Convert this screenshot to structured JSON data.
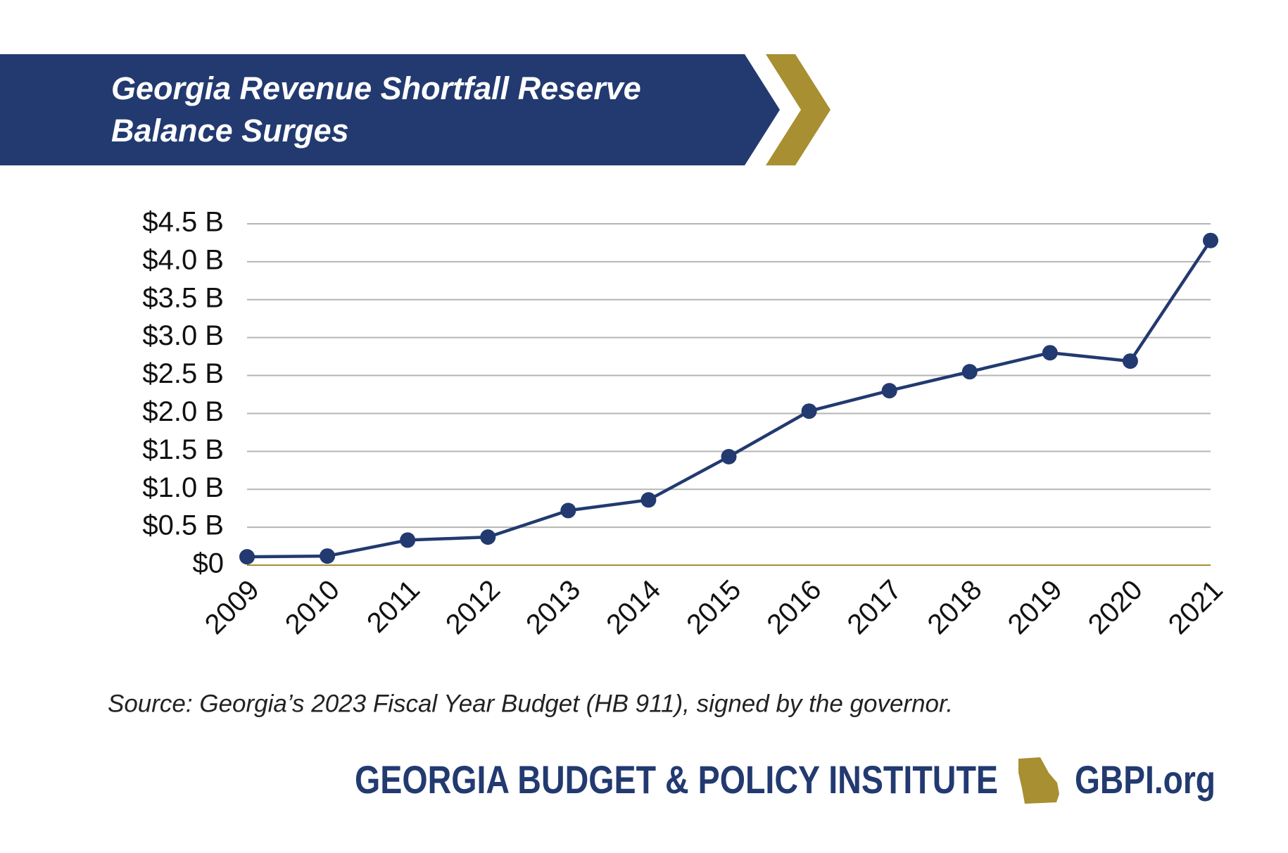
{
  "chart_data": {
    "type": "line",
    "title": "Georgia Revenue Shortfall Reserve Balance Surges",
    "categories": [
      "2009",
      "2010",
      "2011",
      "2012",
      "2013",
      "2014",
      "2015",
      "2016",
      "2017",
      "2018",
      "2019",
      "2020",
      "2021"
    ],
    "series": [
      {
        "name": "Revenue Shortfall Reserve balance",
        "color": "#223a70",
        "values": [
          0.11,
          0.12,
          0.33,
          0.37,
          0.72,
          0.86,
          1.43,
          2.03,
          2.3,
          2.55,
          2.8,
          2.69,
          4.28
        ]
      }
    ],
    "ylim": [
      0,
      4.5
    ],
    "yticks": [
      {
        "value": 0,
        "label": "$0"
      },
      {
        "value": 0.5,
        "label": "$0.5 B"
      },
      {
        "value": 1,
        "label": "$1.0 B"
      },
      {
        "value": 1.5,
        "label": "$1.5 B"
      },
      {
        "value": 2,
        "label": "$2.0 B"
      },
      {
        "value": 2.5,
        "label": "$2.5 B"
      },
      {
        "value": 3,
        "label": "$3.0 B"
      },
      {
        "value": 3.5,
        "label": "$3.5 B"
      },
      {
        "value": 4,
        "label": "$4.0 B"
      },
      {
        "value": 4.5,
        "label": "$4.5 B"
      }
    ],
    "grid": true,
    "source": "Source: Georgia’s 2023 Fiscal Year Budget (HB 911), signed by the governor.",
    "footer": {
      "organization": "GEORGIA BUDGET & POLICY INSTITUTE",
      "website": "GBPI.org"
    }
  }
}
